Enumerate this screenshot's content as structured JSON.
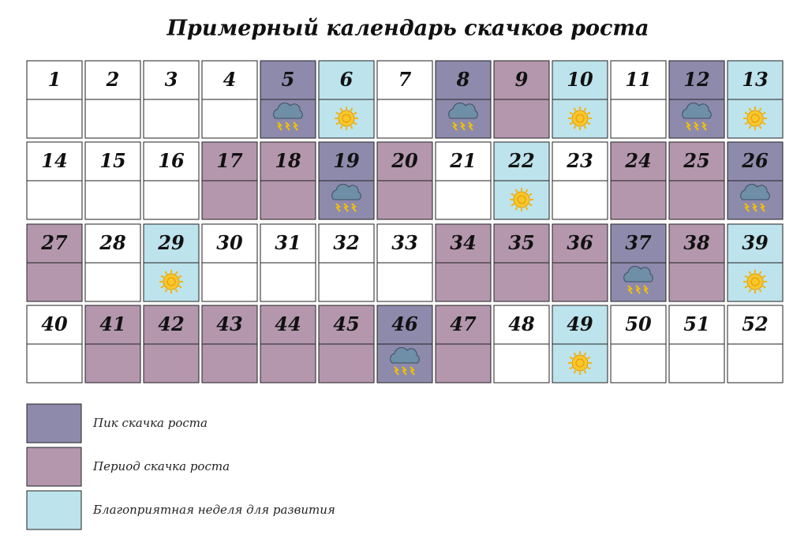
{
  "title": "Примерный календарь скачков роста",
  "styles": {
    "peak": "#8e8aac",
    "period": "#b497ad",
    "good": "#bde3ec",
    "none": "#ffffff"
  },
  "weeks": [
    {
      "label": "1",
      "kind": "none"
    },
    {
      "label": "2",
      "kind": "none"
    },
    {
      "label": "3",
      "kind": "none"
    },
    {
      "label": "4",
      "kind": "none"
    },
    {
      "label": "5",
      "kind": "peak"
    },
    {
      "label": "6",
      "kind": "good"
    },
    {
      "label": "7",
      "kind": "none"
    },
    {
      "label": "8",
      "kind": "peak"
    },
    {
      "label": "9",
      "kind": "period"
    },
    {
      "label": "10",
      "kind": "good"
    },
    {
      "label": "11",
      "kind": "none"
    },
    {
      "label": "12",
      "kind": "peak"
    },
    {
      "label": "13",
      "kind": "good"
    },
    {
      "label": "14",
      "kind": "none"
    },
    {
      "label": "15",
      "kind": "none"
    },
    {
      "label": "16",
      "kind": "none"
    },
    {
      "label": "17",
      "kind": "period"
    },
    {
      "label": "18",
      "kind": "period"
    },
    {
      "label": "19",
      "kind": "peak"
    },
    {
      "label": "20",
      "kind": "period"
    },
    {
      "label": "21",
      "kind": "none"
    },
    {
      "label": "22",
      "kind": "good"
    },
    {
      "label": "23",
      "kind": "none"
    },
    {
      "label": "24",
      "kind": "period"
    },
    {
      "label": "25",
      "kind": "period"
    },
    {
      "label": "26",
      "kind": "peak"
    },
    {
      "label": "27",
      "kind": "period"
    },
    {
      "label": "28",
      "kind": "none"
    },
    {
      "label": "29",
      "kind": "good"
    },
    {
      "label": "30",
      "kind": "none"
    },
    {
      "label": "31",
      "kind": "none"
    },
    {
      "label": "32",
      "kind": "none"
    },
    {
      "label": "33",
      "kind": "none"
    },
    {
      "label": "34",
      "kind": "period"
    },
    {
      "label": "35",
      "kind": "period"
    },
    {
      "label": "36",
      "kind": "period"
    },
    {
      "label": "37",
      "kind": "peak"
    },
    {
      "label": "38",
      "kind": "period"
    },
    {
      "label": "39",
      "kind": "good"
    },
    {
      "label": "40",
      "kind": "none"
    },
    {
      "label": "41",
      "kind": "period"
    },
    {
      "label": "42",
      "kind": "period"
    },
    {
      "label": "43",
      "kind": "period"
    },
    {
      "label": "44",
      "kind": "period"
    },
    {
      "label": "45",
      "kind": "period"
    },
    {
      "label": "46",
      "kind": "peak"
    },
    {
      "label": "47",
      "kind": "period"
    },
    {
      "label": "48",
      "kind": "none"
    },
    {
      "label": "49",
      "kind": "good"
    },
    {
      "label": "50",
      "kind": "none"
    },
    {
      "label": "51",
      "kind": "none"
    },
    {
      "label": "52",
      "kind": "none"
    }
  ],
  "legend": [
    {
      "label": "Пик скачка роста",
      "kind": "peak"
    },
    {
      "label": "Период скачка роста",
      "kind": "period"
    },
    {
      "label": "Благоприятная неделя для развития",
      "kind": "good"
    }
  ]
}
